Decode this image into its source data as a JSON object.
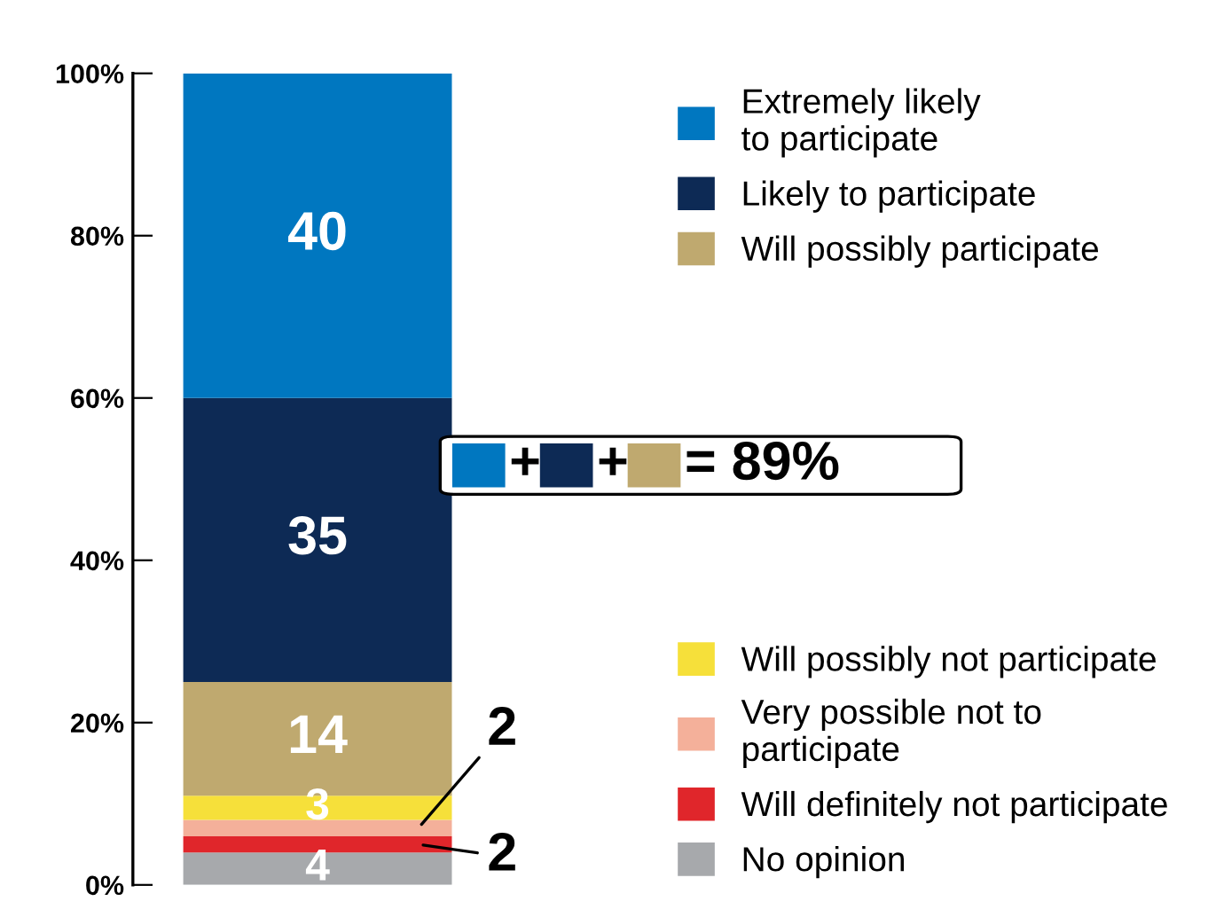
{
  "chart_data": {
    "type": "bar",
    "stacked": true,
    "categories": [
      null
    ],
    "series": [
      {
        "name": "No opinion",
        "color": "#a7a9ac",
        "values": [
          4
        ]
      },
      {
        "name": "Will definitely not participate",
        "color": "#e0262b",
        "values": [
          2
        ]
      },
      {
        "name": "Very possible not to\nparticipate",
        "color": "#f4b09a",
        "values": [
          2
        ]
      },
      {
        "name": "Will possibly not participate",
        "color": "#f6e03a",
        "values": [
          3
        ]
      },
      {
        "name": "Will possibly participate",
        "color": "#bfa96f",
        "values": [
          14
        ]
      },
      {
        "name": "Likely to participate",
        "color": "#0d2a55",
        "values": [
          35
        ]
      },
      {
        "name": "Extremely likely\nto participate",
        "color": "#0077c0",
        "values": [
          40
        ]
      }
    ],
    "ylim": [
      0,
      100
    ],
    "yticks": [
      {
        "value": 0,
        "label": "0%"
      },
      {
        "value": 20,
        "label": "20%"
      },
      {
        "value": 40,
        "label": "40%"
      },
      {
        "value": 60,
        "label": "60%"
      },
      {
        "value": 80,
        "label": "80%"
      },
      {
        "value": 100,
        "label": "100%"
      }
    ],
    "data_labels": true,
    "tick_labels": "y",
    "grid": false,
    "legend": "right",
    "annotations": [
      "+",
      "+",
      "= 89%"
    ]
  }
}
